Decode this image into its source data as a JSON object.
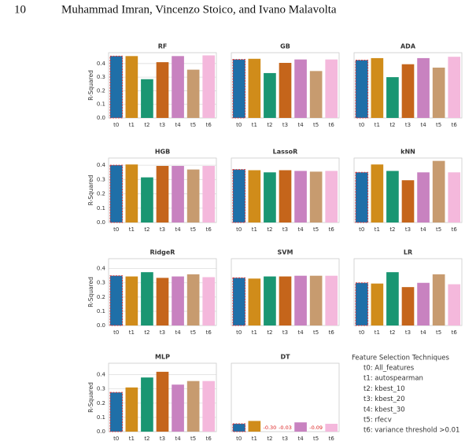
{
  "header": {
    "page_number": "10",
    "authors": "Muhammad Imran, Vincenzo Stoico, and Ivano Malavolta"
  },
  "chart_data": [
    {
      "type": "bar",
      "title": "RF",
      "ylabel": "R-Squared",
      "categories": [
        "t0",
        "t1",
        "t2",
        "t3",
        "t4",
        "t5",
        "t6"
      ],
      "values": [
        0.455,
        0.455,
        0.285,
        0.41,
        0.455,
        0.355,
        0.46
      ],
      "ylim": [
        0,
        0.48
      ],
      "yticks": [
        {
          "value": 0,
          "label": "0.0"
        },
        0.1,
        0.2,
        0.3,
        0.4
      ]
    },
    {
      "type": "bar",
      "title": "GB",
      "categories": [
        "t0",
        "t1",
        "t2",
        "t3",
        "t4",
        "t5",
        "t6"
      ],
      "values": [
        0.43,
        0.435,
        0.33,
        0.405,
        0.43,
        0.345,
        0.43
      ],
      "ylim": [
        0,
        0.48
      ]
    },
    {
      "type": "bar",
      "title": "ADA",
      "categories": [
        "t0",
        "t1",
        "t2",
        "t3",
        "t4",
        "t5",
        "t6"
      ],
      "values": [
        0.425,
        0.44,
        0.3,
        0.395,
        0.44,
        0.37,
        0.45
      ],
      "ylim": [
        0,
        0.48
      ]
    },
    {
      "type": "bar",
      "title": "HGB",
      "ylabel": "R-Squared",
      "categories": [
        "t0",
        "t1",
        "t2",
        "t3",
        "t4",
        "t5",
        "t6"
      ],
      "values": [
        0.4,
        0.405,
        0.315,
        0.395,
        0.395,
        0.37,
        0.395
      ],
      "ylim": [
        0,
        0.45
      ],
      "yticks": [
        {
          "value": 0,
          "label": "0.0"
        },
        0.1,
        0.2,
        0.3,
        0.4
      ]
    },
    {
      "type": "bar",
      "title": "LassoR",
      "categories": [
        "t0",
        "t1",
        "t2",
        "t3",
        "t4",
        "t5",
        "t6"
      ],
      "values": [
        0.37,
        0.365,
        0.35,
        0.365,
        0.36,
        0.355,
        0.36
      ],
      "ylim": [
        0,
        0.45
      ]
    },
    {
      "type": "bar",
      "title": "kNN",
      "categories": [
        "t0",
        "t1",
        "t2",
        "t3",
        "t4",
        "t5",
        "t6"
      ],
      "values": [
        0.35,
        0.405,
        0.36,
        0.295,
        0.35,
        0.43,
        0.35
      ],
      "ylim": [
        0,
        0.45
      ]
    },
    {
      "type": "bar",
      "title": "RidgeR",
      "ylabel": "R-Squared",
      "categories": [
        "t0",
        "t1",
        "t2",
        "t3",
        "t4",
        "t5",
        "t6"
      ],
      "values": [
        0.35,
        0.345,
        0.375,
        0.335,
        0.345,
        0.36,
        0.34
      ],
      "ylim": [
        0,
        0.47
      ],
      "yticks": [
        {
          "value": 0,
          "label": "0.0"
        },
        0.1,
        0.2,
        0.3,
        0.4
      ]
    },
    {
      "type": "bar",
      "title": "SVM",
      "categories": [
        "t0",
        "t1",
        "t2",
        "t3",
        "t4",
        "t5",
        "t6"
      ],
      "values": [
        0.335,
        0.33,
        0.345,
        0.345,
        0.35,
        0.35,
        0.35
      ],
      "ylim": [
        0,
        0.47
      ]
    },
    {
      "type": "bar",
      "title": "LR",
      "categories": [
        "t0",
        "t1",
        "t2",
        "t3",
        "t4",
        "t5",
        "t6"
      ],
      "values": [
        0.3,
        0.295,
        0.375,
        0.27,
        0.3,
        0.36,
        0.29
      ],
      "ylim": [
        0,
        0.47
      ]
    },
    {
      "type": "bar",
      "title": "MLP",
      "ylabel": "R-Squared",
      "categories": [
        "t0",
        "t1",
        "t2",
        "t3",
        "t4",
        "t5",
        "t6"
      ],
      "values": [
        0.275,
        0.31,
        0.38,
        0.42,
        0.33,
        0.355,
        0.355
      ],
      "ylim": [
        0,
        0.48
      ],
      "yticks": [
        {
          "value": 0,
          "label": "0.0"
        },
        0.1,
        0.2,
        0.3,
        0.4
      ]
    },
    {
      "type": "bar",
      "title": "DT",
      "categories": [
        "t0",
        "t1",
        "t2",
        "t3",
        "t4",
        "t5",
        "t6"
      ],
      "values": [
        0.055,
        0.075,
        -0.3,
        -0.03,
        0.065,
        -0.09,
        0.055
      ],
      "value_labels": [
        null,
        null,
        "-0.30",
        "-0.03",
        null,
        "-0.09",
        null
      ],
      "ylim": [
        0,
        0.48
      ]
    }
  ],
  "colors": [
    "#1f6fa8",
    "#d08c1a",
    "#1a9672",
    "#c5651b",
    "#c882c0",
    "#c79b6f",
    "#f4b8dc"
  ],
  "legend": {
    "title": "Feature Selection Techniques",
    "entries": [
      "t0: All_features",
      "t1: autospearman",
      "t2: kbest_10",
      "t3: kbest_20",
      "t4: kbest_30",
      "t5: rfecv",
      "t6: variance threshold >0.01"
    ]
  }
}
